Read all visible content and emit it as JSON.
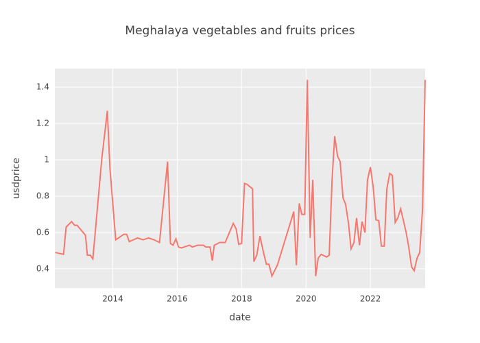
{
  "chart_data": {
    "type": "line",
    "title": "Meghalaya vegetables and fruits prices",
    "x_label": "date",
    "y_label": "usdprice",
    "color": "#F8766D",
    "grid": true,
    "x": [
      2012.21,
      2012.47,
      2012.55,
      2012.72,
      2012.81,
      2012.89,
      2013.15,
      2013.21,
      2013.3,
      2013.38,
      2013.66,
      2013.83,
      2013.91,
      2014.09,
      2014.34,
      2014.43,
      2014.51,
      2014.77,
      2014.94,
      2015.11,
      2015.28,
      2015.45,
      2015.7,
      2015.79,
      2015.87,
      2015.96,
      2016.04,
      2016.13,
      2016.38,
      2016.47,
      2016.64,
      2016.81,
      2016.89,
      2017.02,
      2017.09,
      2017.15,
      2017.32,
      2017.49,
      2017.74,
      2017.83,
      2017.91,
      2018.0,
      2018.09,
      2018.17,
      2018.34,
      2018.38,
      2018.47,
      2018.57,
      2018.68,
      2018.77,
      2018.85,
      2018.94,
      2019.11,
      2019.62,
      2019.7,
      2019.79,
      2019.87,
      2019.96,
      2020.04,
      2020.13,
      2020.21,
      2020.3,
      2020.38,
      2020.47,
      2020.64,
      2020.72,
      2020.81,
      2020.89,
      2020.98,
      2021.06,
      2021.15,
      2021.23,
      2021.32,
      2021.4,
      2021.49,
      2021.57,
      2021.66,
      2021.74,
      2021.83,
      2021.91,
      2022.0,
      2022.09,
      2022.17,
      2022.26,
      2022.34,
      2022.43,
      2022.51,
      2022.6,
      2022.68,
      2022.77,
      2022.85,
      2022.94,
      2023.02,
      2023.11,
      2023.19,
      2023.28,
      2023.36,
      2023.45,
      2023.53,
      2023.62,
      2023.7
    ],
    "values": [
      0.49,
      0.48,
      0.63,
      0.66,
      0.64,
      0.64,
      0.585,
      0.475,
      0.475,
      0.455,
      1.01,
      1.27,
      0.955,
      0.56,
      0.59,
      0.59,
      0.55,
      0.57,
      0.56,
      0.57,
      0.56,
      0.545,
      0.99,
      0.54,
      0.53,
      0.565,
      0.52,
      0.515,
      0.53,
      0.52,
      0.53,
      0.53,
      0.52,
      0.52,
      0.445,
      0.53,
      0.545,
      0.545,
      0.65,
      0.62,
      0.535,
      0.54,
      0.87,
      0.865,
      0.84,
      0.44,
      0.475,
      0.58,
      0.49,
      0.425,
      0.425,
      0.36,
      0.42,
      0.715,
      0.42,
      0.76,
      0.7,
      0.7,
      1.44,
      0.57,
      0.89,
      0.36,
      0.46,
      0.48,
      0.465,
      0.475,
      0.89,
      1.13,
      1.02,
      0.99,
      0.79,
      0.755,
      0.65,
      0.51,
      0.545,
      0.68,
      0.53,
      0.66,
      0.6,
      0.89,
      0.96,
      0.845,
      0.67,
      0.665,
      0.525,
      0.525,
      0.84,
      0.925,
      0.915,
      0.655,
      0.68,
      0.73,
      0.67,
      0.6,
      0.52,
      0.41,
      0.39,
      0.46,
      0.49,
      0.73,
      1.44
    ],
    "xlim": [
      2012.2,
      2023.7
    ],
    "xticks": [
      2014,
      2016,
      2018,
      2020,
      2022
    ],
    "ylim": [
      0.294,
      1.502
    ],
    "yticks": [
      0.4,
      0.6,
      0.8,
      1,
      1.2,
      1.4
    ]
  }
}
